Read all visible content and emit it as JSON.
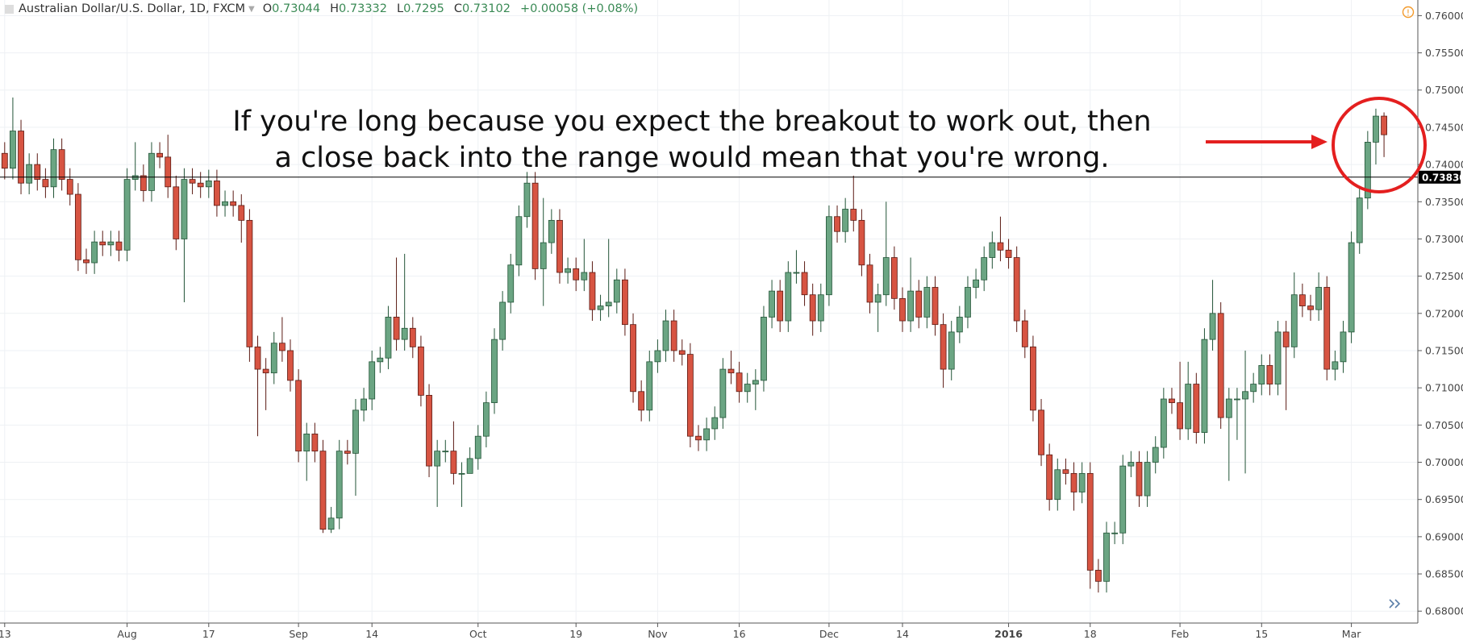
{
  "chart_data": {
    "type": "candlestick",
    "title": "Australian Dollar/U.S. Dollar, 1D, FXCM",
    "ohlc_header": [
      {
        "label": "O",
        "value": 0.73044
      },
      {
        "label": "H",
        "value": 0.73332
      },
      {
        "label": "L",
        "value": 0.7295
      },
      {
        "label": "C",
        "value": 0.73102
      }
    ],
    "change": "+0.00058 (+0.08%)",
    "annotation": [
      "If you're long because you expect the breakout to work out, then",
      "a close back into the range would mean that you're wrong."
    ],
    "hline": {
      "value": 0.7383,
      "label": "0.73830"
    },
    "up_color": "#6ba583",
    "down_color": "#d75442",
    "ylim": [
      0.6784,
      0.7621
    ],
    "yticks": [
      {
        "value": 0.68,
        "label": "0.68000"
      },
      {
        "value": 0.685,
        "label": "0.68500"
      },
      {
        "value": 0.69,
        "label": "0.69000"
      },
      {
        "value": 0.695,
        "label": "0.69500"
      },
      {
        "value": 0.7,
        "label": "0.70000"
      },
      {
        "value": 0.705,
        "label": "0.70500"
      },
      {
        "value": 0.71,
        "label": "0.71000"
      },
      {
        "value": 0.715,
        "label": "0.71500"
      },
      {
        "value": 0.72,
        "label": "0.72000"
      },
      {
        "value": 0.725,
        "label": "0.72500"
      },
      {
        "value": 0.73,
        "label": "0.73000"
      },
      {
        "value": 0.735,
        "label": "0.73500"
      },
      {
        "value": 0.74,
        "label": "0.74000"
      },
      {
        "value": 0.745,
        "label": "0.74500"
      },
      {
        "value": 0.75,
        "label": "0.75000"
      },
      {
        "value": 0.755,
        "label": "0.75500"
      },
      {
        "value": 0.76,
        "label": "0.76000"
      }
    ],
    "grid": true,
    "categories": [
      "13",
      null,
      null,
      null,
      null,
      null,
      null,
      null,
      null,
      null,
      null,
      null,
      null,
      null,
      null,
      "Aug",
      null,
      null,
      null,
      null,
      null,
      null,
      null,
      null,
      null,
      "17",
      null,
      null,
      null,
      null,
      null,
      null,
      null,
      null,
      null,
      null,
      "Sep",
      null,
      null,
      null,
      null,
      null,
      null,
      null,
      null,
      "14",
      null,
      null,
      null,
      null,
      null,
      null,
      null,
      null,
      null,
      null,
      null,
      null,
      "Oct",
      null,
      null,
      null,
      null,
      null,
      null,
      null,
      null,
      null,
      null,
      null,
      "19",
      null,
      null,
      null,
      null,
      null,
      null,
      null,
      null,
      null,
      "Nov",
      null,
      null,
      null,
      null,
      null,
      null,
      null,
      null,
      null,
      "16",
      null,
      null,
      null,
      null,
      null,
      null,
      null,
      null,
      null,
      null,
      "Dec",
      null,
      null,
      null,
      null,
      null,
      null,
      null,
      null,
      "14",
      null,
      null,
      null,
      null,
      null,
      null,
      null,
      null,
      null,
      null,
      null,
      null,
      "2016",
      null,
      null,
      null,
      null,
      null,
      null,
      null,
      null,
      null,
      "18",
      null,
      null,
      null,
      null,
      null,
      null,
      null,
      null,
      null,
      null,
      "Feb",
      null,
      null,
      null,
      null,
      null,
      null,
      null,
      null,
      null,
      "15",
      null,
      null,
      null,
      null,
      null,
      null,
      null,
      null,
      null,
      null,
      "Mar",
      null,
      null,
      null,
      null
    ],
    "open": [
      0.7415,
      0.7395,
      0.7445,
      0.7375,
      0.74,
      0.738,
      0.737,
      0.742,
      0.738,
      0.736,
      0.7272,
      0.7268,
      0.7296,
      0.7292,
      0.7296,
      0.7285,
      0.738,
      0.7385,
      0.7365,
      0.7415,
      0.741,
      0.737,
      0.73,
      0.738,
      0.7375,
      0.737,
      0.7378,
      0.7345,
      0.735,
      0.7345,
      0.7325,
      0.7155,
      0.7125,
      0.712,
      0.716,
      0.715,
      0.711,
      0.7015,
      0.7038,
      0.7015,
      0.691,
      0.6925,
      0.7015,
      0.7012,
      0.707,
      0.7085,
      0.7135,
      0.714,
      0.7195,
      0.7165,
      0.718,
      0.7155,
      0.709,
      0.6995,
      0.7015,
      0.7015,
      0.6985,
      0.6985,
      0.7005,
      0.7035,
      0.708,
      0.7165,
      0.7215,
      0.7265,
      0.733,
      0.7375,
      0.726,
      0.7295,
      0.7325,
      0.7255,
      0.726,
      0.7245,
      0.7255,
      0.7205,
      0.721,
      0.7215,
      0.7245,
      0.7185,
      0.7095,
      0.707,
      0.7135,
      0.715,
      0.719,
      0.715,
      0.7145,
      0.7035,
      0.703,
      0.7045,
      0.706,
      0.7125,
      0.712,
      0.7095,
      0.7105,
      0.711,
      0.7195,
      0.723,
      0.719,
      0.7255,
      0.7255,
      0.7225,
      0.719,
      0.7225,
      0.733,
      0.731,
      0.734,
      0.7325,
      0.7265,
      0.7215,
      0.7225,
      0.7275,
      0.722,
      0.719,
      0.723,
      0.7195,
      0.7235,
      0.7185,
      0.7125,
      0.7175,
      0.7195,
      0.7235,
      0.7245,
      0.7275,
      0.7295,
      0.7285,
      0.7275,
      0.719,
      0.7155,
      0.707,
      0.701,
      0.695,
      0.699,
      0.6985,
      0.696,
      0.6985,
      0.6855,
      0.684,
      0.6905,
      0.6905,
      0.6995,
      0.7,
      0.6955,
      0.7,
      0.702,
      0.7085,
      0.708,
      0.7045,
      0.7105,
      0.704,
      0.7165,
      0.72,
      0.706,
      0.7085,
      0.7085,
      0.7095,
      0.7105,
      0.713,
      0.7105,
      0.7175,
      0.7155,
      0.7225,
      0.721,
      0.7205,
      0.7235,
      0.7125,
      0.7135,
      0.7175,
      0.7295,
      0.7355,
      0.743,
      0.7465
    ],
    "high": [
      0.743,
      0.749,
      0.746,
      0.7415,
      0.7415,
      0.7395,
      0.7435,
      0.7435,
      0.7395,
      0.7375,
      0.7287,
      0.7311,
      0.7311,
      0.7311,
      0.7311,
      0.7395,
      0.743,
      0.74,
      0.743,
      0.743,
      0.744,
      0.7385,
      0.7395,
      0.7395,
      0.739,
      0.7393,
      0.7393,
      0.7365,
      0.7365,
      0.736,
      0.734,
      0.717,
      0.714,
      0.7175,
      0.7195,
      0.7165,
      0.7125,
      0.7053,
      0.7053,
      0.703,
      0.694,
      0.703,
      0.703,
      0.7085,
      0.71,
      0.715,
      0.7155,
      0.721,
      0.7275,
      0.728,
      0.7195,
      0.717,
      0.7105,
      0.703,
      0.703,
      0.7055,
      0.7,
      0.702,
      0.705,
      0.7095,
      0.718,
      0.723,
      0.728,
      0.7345,
      0.739,
      0.739,
      0.7355,
      0.734,
      0.734,
      0.7275,
      0.7275,
      0.73,
      0.727,
      0.7225,
      0.73,
      0.726,
      0.726,
      0.72,
      0.711,
      0.715,
      0.7165,
      0.7205,
      0.7205,
      0.7165,
      0.716,
      0.705,
      0.706,
      0.7075,
      0.714,
      0.715,
      0.7135,
      0.712,
      0.7125,
      0.721,
      0.7245,
      0.7245,
      0.727,
      0.7285,
      0.727,
      0.724,
      0.724,
      0.7345,
      0.7345,
      0.7355,
      0.7385,
      0.734,
      0.728,
      0.724,
      0.735,
      0.729,
      0.7235,
      0.7275,
      0.7245,
      0.725,
      0.725,
      0.72,
      0.719,
      0.721,
      0.725,
      0.726,
      0.729,
      0.731,
      0.733,
      0.73,
      0.729,
      0.7205,
      0.717,
      0.7085,
      0.7025,
      0.7005,
      0.7005,
      0.7,
      0.7,
      0.7,
      0.687,
      0.692,
      0.692,
      0.701,
      0.7015,
      0.7015,
      0.7015,
      0.7035,
      0.71,
      0.71,
      0.7135,
      0.7135,
      0.712,
      0.718,
      0.7245,
      0.7215,
      0.71,
      0.71,
      0.715,
      0.712,
      0.7145,
      0.7145,
      0.719,
      0.719,
      0.7255,
      0.724,
      0.7225,
      0.7255,
      0.725,
      0.715,
      0.719,
      0.731,
      0.737,
      0.7445,
      0.7475,
      0.747
    ],
    "low": [
      0.738,
      0.738,
      0.736,
      0.736,
      0.7365,
      0.7355,
      0.7355,
      0.7365,
      0.7345,
      0.7257,
      0.7253,
      0.7253,
      0.7277,
      0.7277,
      0.727,
      0.727,
      0.7365,
      0.735,
      0.735,
      0.7395,
      0.7355,
      0.7285,
      0.7215,
      0.736,
      0.7355,
      0.7355,
      0.733,
      0.733,
      0.733,
      0.7295,
      0.7135,
      0.7035,
      0.707,
      0.7105,
      0.7135,
      0.7095,
      0.7,
      0.6975,
      0.7,
      0.6905,
      0.6905,
      0.691,
      0.6997,
      0.6955,
      0.7055,
      0.707,
      0.712,
      0.7125,
      0.715,
      0.715,
      0.714,
      0.7075,
      0.698,
      0.694,
      0.7,
      0.697,
      0.694,
      0.699,
      0.699,
      0.702,
      0.7065,
      0.715,
      0.72,
      0.725,
      0.7315,
      0.7245,
      0.721,
      0.728,
      0.724,
      0.724,
      0.723,
      0.723,
      0.719,
      0.719,
      0.7195,
      0.72,
      0.717,
      0.708,
      0.7055,
      0.7055,
      0.712,
      0.7135,
      0.7135,
      0.713,
      0.702,
      0.7015,
      0.7015,
      0.703,
      0.7045,
      0.7105,
      0.708,
      0.708,
      0.707,
      0.7095,
      0.718,
      0.7175,
      0.7175,
      0.724,
      0.721,
      0.717,
      0.7175,
      0.721,
      0.7295,
      0.7295,
      0.731,
      0.725,
      0.72,
      0.7175,
      0.721,
      0.7205,
      0.7175,
      0.7175,
      0.718,
      0.718,
      0.717,
      0.71,
      0.711,
      0.716,
      0.718,
      0.722,
      0.723,
      0.726,
      0.727,
      0.726,
      0.7175,
      0.714,
      0.7055,
      0.6995,
      0.6935,
      0.6935,
      0.697,
      0.6935,
      0.6945,
      0.683,
      0.6825,
      0.6825,
      0.689,
      0.689,
      0.698,
      0.694,
      0.694,
      0.6985,
      0.7005,
      0.7065,
      0.703,
      0.703,
      0.7025,
      0.7025,
      0.715,
      0.7045,
      0.6975,
      0.703,
      0.6985,
      0.708,
      0.709,
      0.709,
      0.709,
      0.707,
      0.714,
      0.7195,
      0.719,
      0.719,
      0.711,
      0.711,
      0.712,
      0.716,
      0.728,
      0.734,
      0.74,
      0.741
    ],
    "close": [
      0.7395,
      0.7445,
      0.7375,
      0.74,
      0.738,
      0.737,
      0.742,
      0.738,
      0.736,
      0.7272,
      0.7268,
      0.7296,
      0.7292,
      0.7296,
      0.7285,
      0.738,
      0.7385,
      0.7365,
      0.7415,
      0.741,
      0.737,
      0.73,
      0.738,
      0.7375,
      0.737,
      0.7378,
      0.7345,
      0.735,
      0.7345,
      0.7325,
      0.7155,
      0.7125,
      0.712,
      0.716,
      0.715,
      0.711,
      0.7015,
      0.7038,
      0.7015,
      0.691,
      0.6925,
      0.7015,
      0.7012,
      0.707,
      0.7085,
      0.7135,
      0.714,
      0.7195,
      0.7165,
      0.718,
      0.7155,
      0.709,
      0.6995,
      0.7015,
      0.7015,
      0.6985,
      0.6985,
      0.7005,
      0.7035,
      0.708,
      0.7165,
      0.7215,
      0.7265,
      0.733,
      0.7375,
      0.726,
      0.7295,
      0.7325,
      0.7255,
      0.726,
      0.7245,
      0.7255,
      0.7205,
      0.721,
      0.7215,
      0.7245,
      0.7185,
      0.7095,
      0.707,
      0.7135,
      0.715,
      0.719,
      0.715,
      0.7145,
      0.7035,
      0.703,
      0.7045,
      0.706,
      0.7125,
      0.712,
      0.7095,
      0.7105,
      0.711,
      0.7195,
      0.723,
      0.719,
      0.7255,
      0.7255,
      0.7225,
      0.719,
      0.7225,
      0.733,
      0.731,
      0.734,
      0.7325,
      0.7265,
      0.7215,
      0.7225,
      0.7275,
      0.722,
      0.719,
      0.723,
      0.7195,
      0.7235,
      0.7185,
      0.7125,
      0.7175,
      0.7195,
      0.7235,
      0.7245,
      0.7275,
      0.7295,
      0.7285,
      0.7275,
      0.719,
      0.7155,
      0.707,
      0.701,
      0.695,
      0.699,
      0.6985,
      0.696,
      0.6985,
      0.6855,
      0.684,
      0.6905,
      0.6905,
      0.6995,
      0.7,
      0.6955,
      0.7,
      0.702,
      0.7085,
      0.708,
      0.7045,
      0.7105,
      0.704,
      0.7165,
      0.72,
      0.706,
      0.7085,
      0.7085,
      0.7095,
      0.7105,
      0.713,
      0.7105,
      0.7175,
      0.7155,
      0.7225,
      0.721,
      0.7205,
      0.7235,
      0.7125,
      0.7135,
      0.7175,
      0.7295,
      0.7355,
      0.743,
      0.7465,
      0.744
    ]
  }
}
